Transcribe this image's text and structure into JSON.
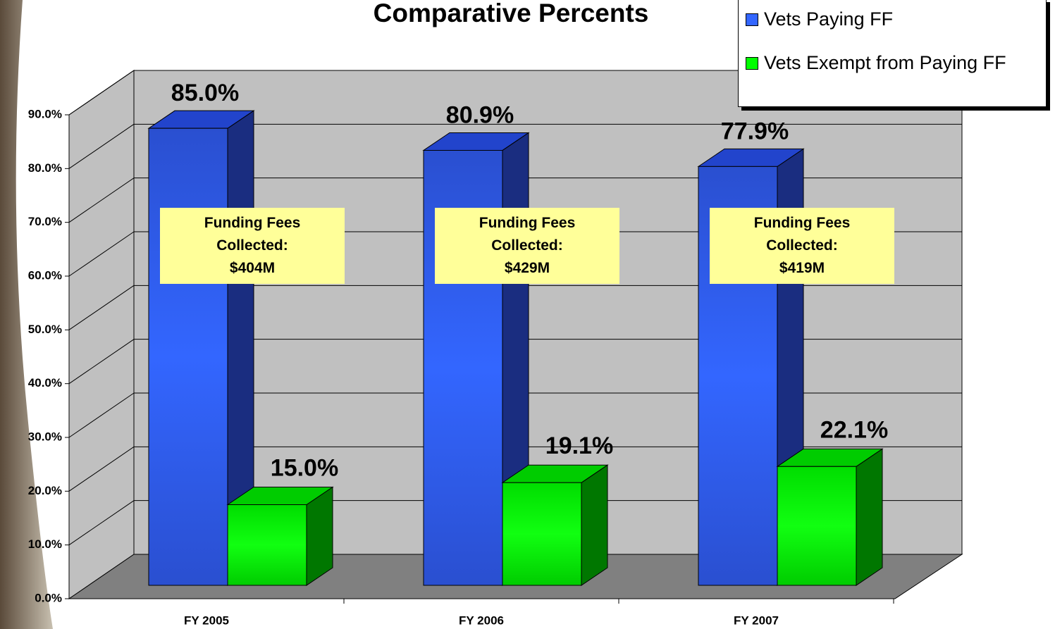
{
  "chart_data": {
    "type": "bar3d",
    "title": "Comparative Percents",
    "categories": [
      "FY 2005",
      "FY 2006",
      "FY 2007"
    ],
    "series": [
      {
        "name": "Vets Paying FF",
        "color": "#3366ff",
        "values": [
          85.0,
          80.9,
          77.9
        ],
        "value_labels": [
          "85.0%",
          "80.9%",
          "77.9%"
        ]
      },
      {
        "name": "Vets Exempt from Paying FF",
        "color": "#00ff00",
        "values": [
          15.0,
          19.1,
          22.1
        ],
        "value_labels": [
          "15.0%",
          "19.1%",
          "22.1%"
        ]
      }
    ],
    "annotations": [
      "Funding Fees Collected: $404M",
      "Funding Fees Collected: $429M",
      "Funding Fees Collected: $419M"
    ],
    "ylim": [
      0,
      90
    ],
    "yticks": [
      {
        "value": 0,
        "label": "0.0%"
      },
      {
        "value": 10,
        "label": "10.0%"
      },
      {
        "value": 20,
        "label": "20.0%"
      },
      {
        "value": 30,
        "label": "30.0%"
      },
      {
        "value": 40,
        "label": "40.0%"
      },
      {
        "value": 50,
        "label": "50.0%"
      },
      {
        "value": 60,
        "label": "60.0%"
      },
      {
        "value": 70,
        "label": "70.0%"
      },
      {
        "value": 80,
        "label": "80.0%"
      },
      {
        "value": 90,
        "label": "90.0%"
      }
    ],
    "grid": true,
    "legend": "upper right"
  }
}
